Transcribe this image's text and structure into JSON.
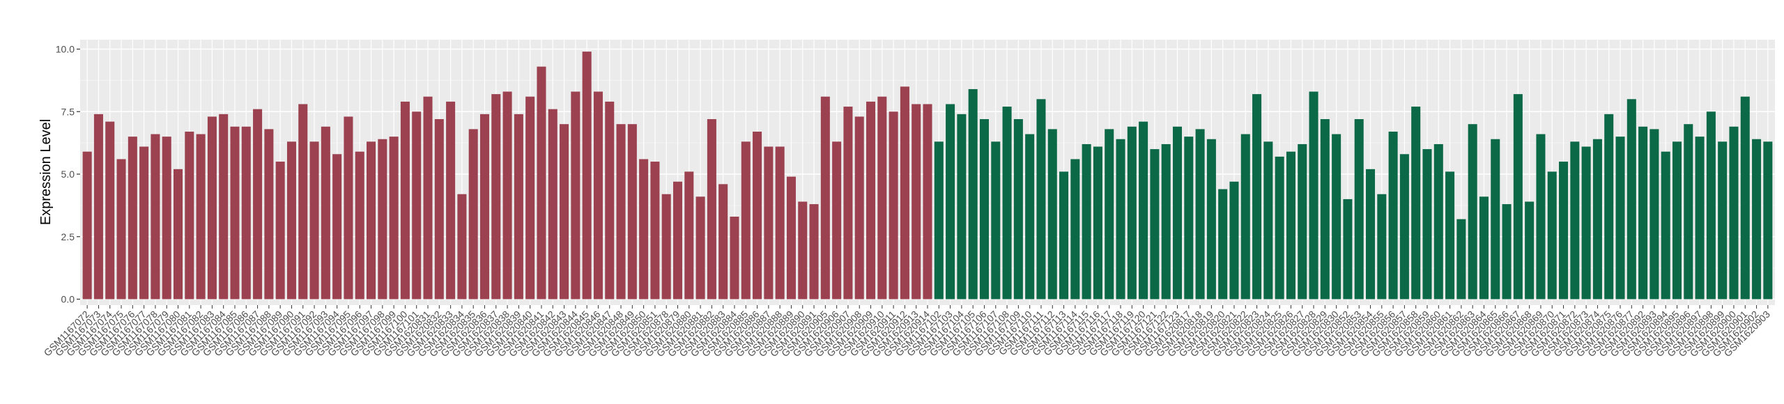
{
  "chart_data": {
    "type": "bar",
    "ylabel": "Expression Level",
    "xlabel": "",
    "ylim": [
      0,
      10.5
    ],
    "yticks": [
      0.0,
      2.5,
      5.0,
      7.5,
      10.0
    ],
    "ytick_labels": [
      "0.0",
      "2.5",
      "5.0",
      "7.5",
      "10.0"
    ],
    "grid": true,
    "legend": "none",
    "colors": {
      "group1": "#9c4150",
      "group2": "#0b6948",
      "panel": "#ebebeb",
      "grid_major": "#ffffff",
      "grid_minor": "#f4f4f4"
    },
    "series": [
      {
        "color": "#9c4150",
        "categories": [
          "GSM1167072",
          "GSM1167073",
          "GSM1167074",
          "GSM1167075",
          "GSM1167076",
          "GSM1167077",
          "GSM1167078",
          "GSM1167079",
          "GSM1167080",
          "GSM1167081",
          "GSM1167082",
          "GSM1167083",
          "GSM1167084",
          "GSM1167085",
          "GSM1167086",
          "GSM1167087",
          "GSM1167088",
          "GSM1167089",
          "GSM1167090",
          "GSM1167091",
          "GSM1167092",
          "GSM1167093",
          "GSM1167094",
          "GSM1167095",
          "GSM1167096",
          "GSM1167097",
          "GSM1167098",
          "GSM1167099",
          "GSM1167100",
          "GSM1167101",
          "GSM1620831",
          "GSM1620832",
          "GSM1620833",
          "GSM1620834",
          "GSM1620835",
          "GSM1620836",
          "GSM1620837",
          "GSM1620838",
          "GSM1620839",
          "GSM1620840",
          "GSM1620841",
          "GSM1620842",
          "GSM1620843",
          "GSM1620844",
          "GSM1620845",
          "GSM1620846",
          "GSM1620847",
          "GSM1620848",
          "GSM1620849",
          "GSM1620850",
          "GSM1620851",
          "GSM1620878",
          "GSM1620879",
          "GSM1620880",
          "GSM1620881",
          "GSM1620882",
          "GSM1620883",
          "GSM1620884",
          "GSM1620885",
          "GSM1620886",
          "GSM1620887",
          "GSM1620888",
          "GSM1620889",
          "GSM1620890",
          "GSM1620891",
          "GSM1620905",
          "GSM1620906",
          "GSM1620907",
          "GSM1620908",
          "GSM1620909",
          "GSM1620910",
          "GSM1620911",
          "GSM1620912",
          "GSM1620913",
          "GSM1620914"
        ],
        "values": [
          5.9,
          7.4,
          7.1,
          5.6,
          6.5,
          6.1,
          6.6,
          6.5,
          5.2,
          6.7,
          6.6,
          7.3,
          7.4,
          6.9,
          6.9,
          7.6,
          6.8,
          5.5,
          6.3,
          7.8,
          6.3,
          6.9,
          5.8,
          7.3,
          5.9,
          6.3,
          6.4,
          6.5,
          7.9,
          7.5,
          8.1,
          7.2,
          7.9,
          4.2,
          6.8,
          7.4,
          8.2,
          8.3,
          7.4,
          8.1,
          9.3,
          7.6,
          7.0,
          8.3,
          9.9,
          8.3,
          7.9,
          7.0,
          7.0,
          5.6,
          5.5,
          4.2,
          4.7,
          5.1,
          4.1,
          7.2,
          4.6,
          3.3,
          6.3,
          6.7,
          6.1,
          6.1,
          4.9,
          3.9,
          3.8,
          8.1,
          6.3,
          7.7,
          7.3,
          7.9,
          8.1,
          7.5,
          8.5,
          7.8,
          7.8
        ]
      },
      {
        "color": "#0b6948",
        "categories": [
          "GSM1167102",
          "GSM1167103",
          "GSM1167104",
          "GSM1167105",
          "GSM1167106",
          "GSM1167107",
          "GSM1167108",
          "GSM1167109",
          "GSM1167110",
          "GSM1167111",
          "GSM1167112",
          "GSM1167113",
          "GSM1167114",
          "GSM1167115",
          "GSM1167116",
          "GSM1167117",
          "GSM1167118",
          "GSM1167119",
          "GSM1167120",
          "GSM1167121",
          "GSM1167122",
          "GSM1167123",
          "GSM1620817",
          "GSM1620818",
          "GSM1620819",
          "GSM1620820",
          "GSM1620821",
          "GSM1620822",
          "GSM1620823",
          "GSM1620824",
          "GSM1620825",
          "GSM1620826",
          "GSM1620827",
          "GSM1620828",
          "GSM1620829",
          "GSM1620830",
          "GSM1620852",
          "GSM1620853",
          "GSM1620854",
          "GSM1620855",
          "GSM1620856",
          "GSM1620857",
          "GSM1620858",
          "GSM1620859",
          "GSM1620860",
          "GSM1620861",
          "GSM1620862",
          "GSM1620863",
          "GSM1620864",
          "GSM1620865",
          "GSM1620866",
          "GSM1620867",
          "GSM1620868",
          "GSM1620869",
          "GSM1620870",
          "GSM1620871",
          "GSM1620872",
          "GSM1620873",
          "GSM1620874",
          "GSM1620875",
          "GSM1620876",
          "GSM1620877",
          "GSM1620892",
          "GSM1620893",
          "GSM1620894",
          "GSM1620895",
          "GSM1620896",
          "GSM1620897",
          "GSM1620898",
          "GSM1620899",
          "GSM1620900",
          "GSM1620901",
          "GSM1620902",
          "GSM1620903"
        ],
        "values": [
          6.3,
          7.8,
          7.4,
          8.4,
          7.2,
          6.3,
          7.7,
          7.2,
          6.6,
          8.0,
          6.8,
          5.1,
          5.6,
          6.2,
          6.1,
          6.8,
          6.4,
          6.9,
          7.1,
          6.0,
          6.2,
          6.9,
          6.5,
          6.8,
          6.4,
          4.4,
          4.7,
          6.6,
          8.2,
          6.3,
          5.7,
          5.9,
          6.2,
          8.3,
          7.2,
          6.6,
          4.0,
          7.2,
          5.2,
          4.2,
          6.7,
          5.8,
          7.7,
          6.0,
          6.2,
          5.1,
          3.2,
          7.0,
          4.1,
          6.4,
          3.8,
          8.2,
          3.9,
          6.6,
          5.1,
          5.5,
          6.3,
          6.1,
          6.4,
          7.4,
          6.5,
          8.0,
          6.9,
          6.8,
          5.9,
          6.3,
          7.0,
          6.5,
          7.5,
          6.3,
          6.9,
          8.1,
          6.4,
          6.3
        ]
      }
    ]
  }
}
